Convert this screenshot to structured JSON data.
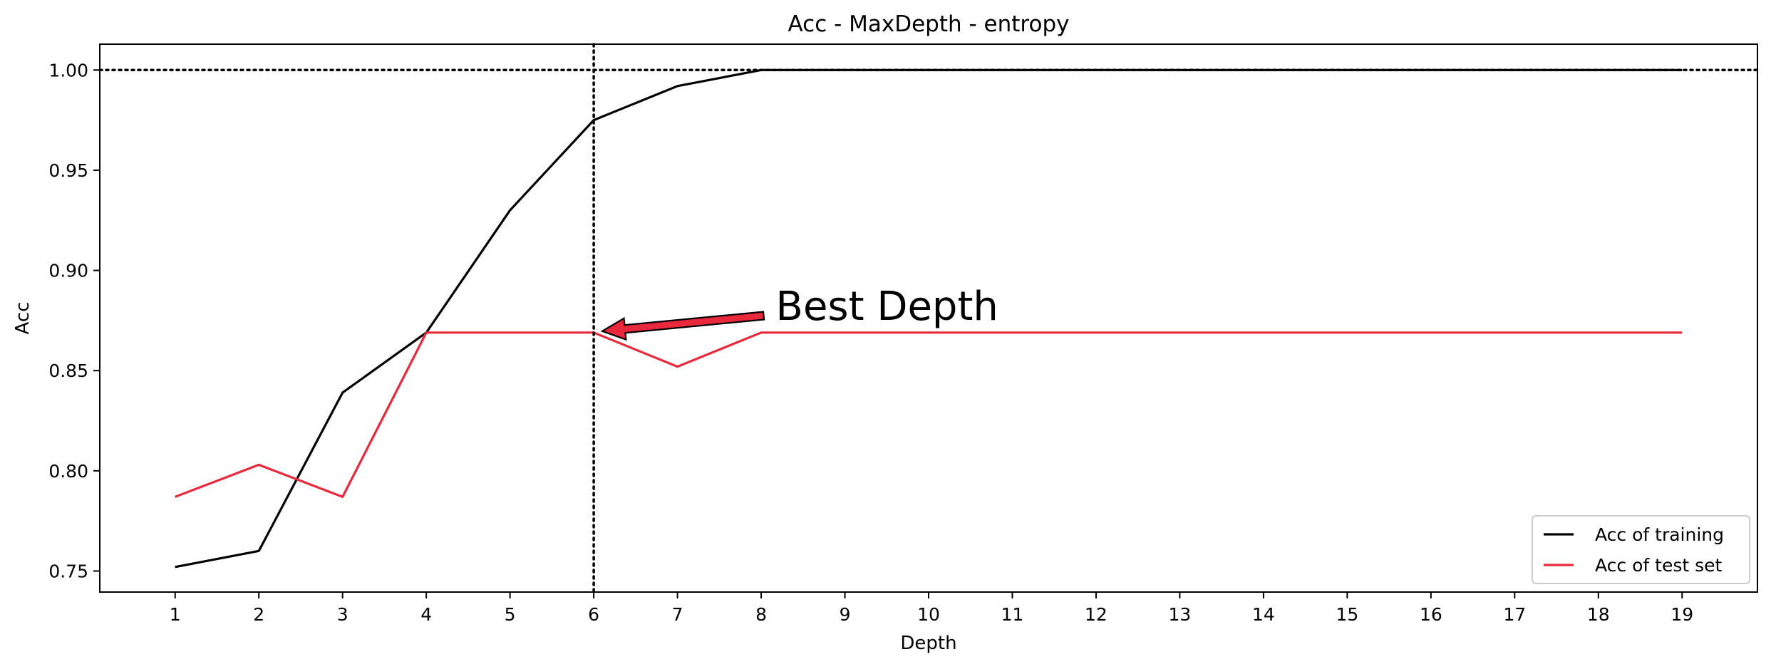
{
  "chart_data": {
    "type": "line",
    "title": "Acc - MaxDepth - entropy",
    "xlabel": "Depth",
    "ylabel": "Acc",
    "x": [
      1,
      2,
      3,
      4,
      5,
      6,
      7,
      8,
      9,
      10,
      11,
      12,
      13,
      14,
      15,
      16,
      17,
      18,
      19
    ],
    "xlim": [
      0.1,
      19.9
    ],
    "ylim": [
      0.7395,
      1.0129
    ],
    "x_ticks": [
      "1",
      "2",
      "3",
      "4",
      "5",
      "6",
      "7",
      "8",
      "9",
      "10",
      "11",
      "12",
      "13",
      "14",
      "15",
      "16",
      "17",
      "18",
      "19"
    ],
    "y_ticks": [
      {
        "value": 0.75,
        "label": "0.75"
      },
      {
        "value": 0.8,
        "label": "0.80"
      },
      {
        "value": 0.85,
        "label": "0.85"
      },
      {
        "value": 0.9,
        "label": "0.90"
      },
      {
        "value": 0.95,
        "label": "0.95"
      },
      {
        "value": 1.0,
        "label": "1.00"
      }
    ],
    "series": [
      {
        "name": "Acc of training",
        "color": "#000000",
        "values": [
          0.752,
          0.76,
          0.839,
          0.869,
          0.93,
          0.975,
          0.992,
          1.0,
          1.0,
          1.0,
          1.0,
          1.0,
          1.0,
          1.0,
          1.0,
          1.0,
          1.0,
          1.0,
          1.0
        ]
      },
      {
        "name": "Acc of test set",
        "color": "#e8283b",
        "values": [
          0.787,
          0.803,
          0.787,
          0.869,
          0.869,
          0.869,
          0.852,
          0.869,
          0.869,
          0.869,
          0.869,
          0.869,
          0.869,
          0.869,
          0.869,
          0.869,
          0.869,
          0.869,
          0.869
        ]
      }
    ],
    "reference_lines": [
      {
        "orientation": "horizontal",
        "value": 1.0,
        "style": "dotted",
        "color": "#000000"
      },
      {
        "orientation": "vertical",
        "value": 6,
        "style": "dotted",
        "color": "#000000"
      }
    ],
    "annotation": {
      "text": "Best Depth",
      "target_x": 6,
      "target_y": 0.869,
      "text_x": 8.2,
      "text_y": 0.876,
      "arrow_color": "#e8283b"
    },
    "legend_position": "lower-right",
    "grid": false
  }
}
